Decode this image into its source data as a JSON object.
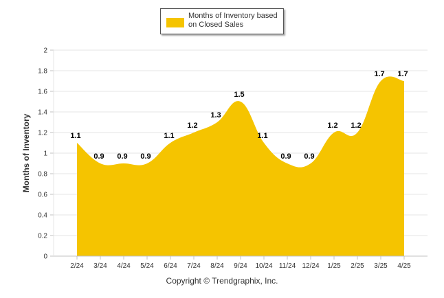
{
  "copyright": "Copyright © Trendgraphix, Inc.",
  "chart_data": {
    "type": "area",
    "categories": [
      "2/24",
      "3/24",
      "4/24",
      "5/24",
      "6/24",
      "7/24",
      "8/24",
      "9/24",
      "10/24",
      "11/24",
      "12/24",
      "1/25",
      "2/25",
      "3/25",
      "4/25"
    ],
    "series": [
      {
        "name": "Months of Inventory based on Closed Sales",
        "color": "#f5c400",
        "values": [
          1.1,
          0.9,
          0.9,
          0.9,
          1.1,
          1.2,
          1.3,
          1.5,
          1.1,
          0.9,
          0.9,
          1.2,
          1.2,
          1.7,
          1.7
        ],
        "labels": [
          "1.1",
          "0.9",
          "0.9",
          "0.9",
          "1.1",
          "1.2",
          "1.3",
          "1.5",
          "1.1",
          "0.9",
          "0.9",
          "1.2",
          "1.2",
          "1.7",
          "1.7"
        ]
      }
    ],
    "ylabel": "Months of Inventory",
    "xlabel": "",
    "ylim": [
      0,
      2
    ],
    "yticks": [
      "0",
      "0.2",
      "0.4",
      "0.6",
      "0.8",
      "1",
      "1.2",
      "1.4",
      "1.6",
      "1.8",
      "2"
    ],
    "grid": true,
    "legend": "top-center"
  }
}
